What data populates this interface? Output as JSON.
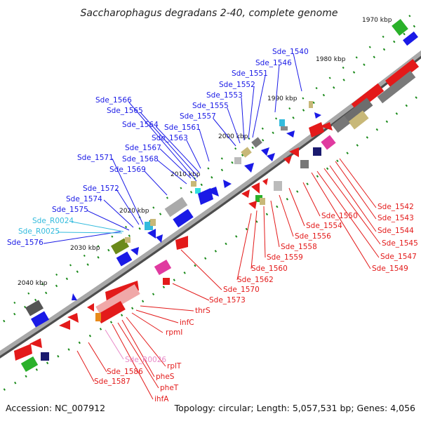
{
  "header": {
    "title": "Saccharophagus degradans 2-40, complete genome"
  },
  "footer": {
    "accession": "Accession: NC_007912",
    "summary": "Topology: circular; Length: 5,057,531 bp; Genes: 4,056"
  },
  "colors": {
    "blue": "#1a1ae6",
    "red": "#e31a1a",
    "cyan": "#33bbdd",
    "pink": "#e88ac8",
    "grey": "#888888",
    "green_tick": "#1a8a1a"
  },
  "ticks": [
    "1970 kbp",
    "1980 kbp",
    "1990 kbp",
    "2000 kbp",
    "2010 kbp",
    "2020 kbp",
    "2030 kbp",
    "2040 kbp"
  ],
  "labels": {
    "forward": [
      "Sde_1540",
      "Sde_1546",
      "Sde_1551",
      "Sde_1552",
      "Sde_1553",
      "Sde_1555",
      "Sde_1557",
      "Sde_1561",
      "Sde_1563",
      "Sde_1564",
      "Sde_1565",
      "Sde_1566",
      "Sde_1567",
      "Sde_1568",
      "Sde_1569",
      "Sde_1571",
      "Sde_1572",
      "Sde_1574",
      "Sde_1575",
      "Sde_1576"
    ],
    "rna": [
      "Sde_R0024",
      "Sde_R0025"
    ],
    "reverse": [
      "Sde_1542",
      "Sde_1543",
      "Sde_1544",
      "Sde_1545",
      "Sde_1547",
      "Sde_1549",
      "Sde_1550",
      "Sde_1554",
      "Sde_1556",
      "Sde_1558",
      "Sde_1559",
      "Sde_1560",
      "Sde_1562",
      "Sde_1570",
      "Sde_1573",
      "thrS",
      "infC",
      "rpmI",
      "rplT",
      "pheS",
      "pheT",
      "ihfA",
      "Sde_1586",
      "Sde_1587"
    ],
    "reverse_rna": [
      "Sde_R0026"
    ]
  }
}
